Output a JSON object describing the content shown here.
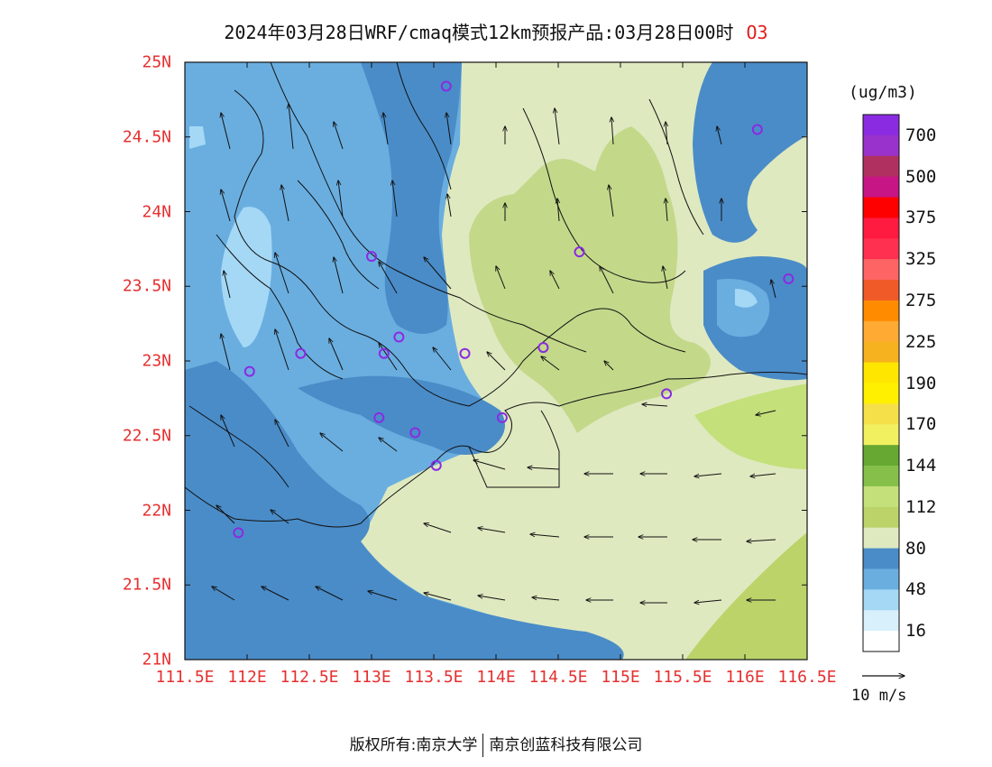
{
  "title": {
    "text": "2024年03月28日WRF/cmaq模式12km预报产品:03月28日00时",
    "species": "O3"
  },
  "axes": {
    "lon_ticks": [
      "111.5E",
      "112E",
      "112.5E",
      "113E",
      "113.5E",
      "114E",
      "114.5E",
      "115E",
      "115.5E",
      "116E",
      "116.5E"
    ],
    "lat_ticks": [
      "25N",
      "24.5N",
      "24N",
      "23.5N",
      "23N",
      "22.5N",
      "22N",
      "21.5N",
      "21N"
    ],
    "lon_range": [
      111.5,
      116.5
    ],
    "lat_range": [
      21,
      25
    ],
    "tick_color": "#e53030"
  },
  "colorbar": {
    "unit": "(ug/m3)",
    "labels": [
      "700",
      "500",
      "375",
      "325",
      "275",
      "225",
      "190",
      "170",
      "144",
      "112",
      "80",
      "48",
      "16"
    ],
    "colors_top_to_bottom": [
      "#8a2be2",
      "#9932cc",
      "#b03060",
      "#c71585",
      "#ff0000",
      "#ff1a40",
      "#ff3050",
      "#ff6464",
      "#f05a28",
      "#ff8c00",
      "#ffaa33",
      "#f7b21f",
      "#ffe600",
      "#fff000",
      "#f5e04a",
      "#f0f060",
      "#66a832",
      "#86c04a",
      "#c4e07a",
      "#bcd36a",
      "#dfe9c0",
      "#4a8cc8",
      "#6aaee0",
      "#a4d8f5",
      "#d8f0fc",
      "#ffffff"
    ]
  },
  "wind_reference": {
    "label": "10 m/s"
  },
  "stations": [
    {
      "lon": 113.6,
      "lat": 24.84
    },
    {
      "lon": 116.1,
      "lat": 24.55
    },
    {
      "lon": 113.0,
      "lat": 23.7
    },
    {
      "lon": 114.67,
      "lat": 23.73
    },
    {
      "lon": 116.35,
      "lat": 23.55
    },
    {
      "lon": 112.43,
      "lat": 23.05
    },
    {
      "lon": 113.1,
      "lat": 23.05
    },
    {
      "lon": 113.22,
      "lat": 23.16
    },
    {
      "lon": 113.75,
      "lat": 23.05
    },
    {
      "lon": 114.38,
      "lat": 23.09
    },
    {
      "lon": 112.02,
      "lat": 22.93
    },
    {
      "lon": 115.37,
      "lat": 22.78
    },
    {
      "lon": 113.06,
      "lat": 22.62
    },
    {
      "lon": 113.35,
      "lat": 22.52
    },
    {
      "lon": 114.05,
      "lat": 22.62
    },
    {
      "lon": 113.52,
      "lat": 22.3
    },
    {
      "lon": 111.93,
      "lat": 21.85
    }
  ],
  "footer": {
    "left": "版权所有:南京大学",
    "right": "南京创蓝科技有限公司"
  }
}
